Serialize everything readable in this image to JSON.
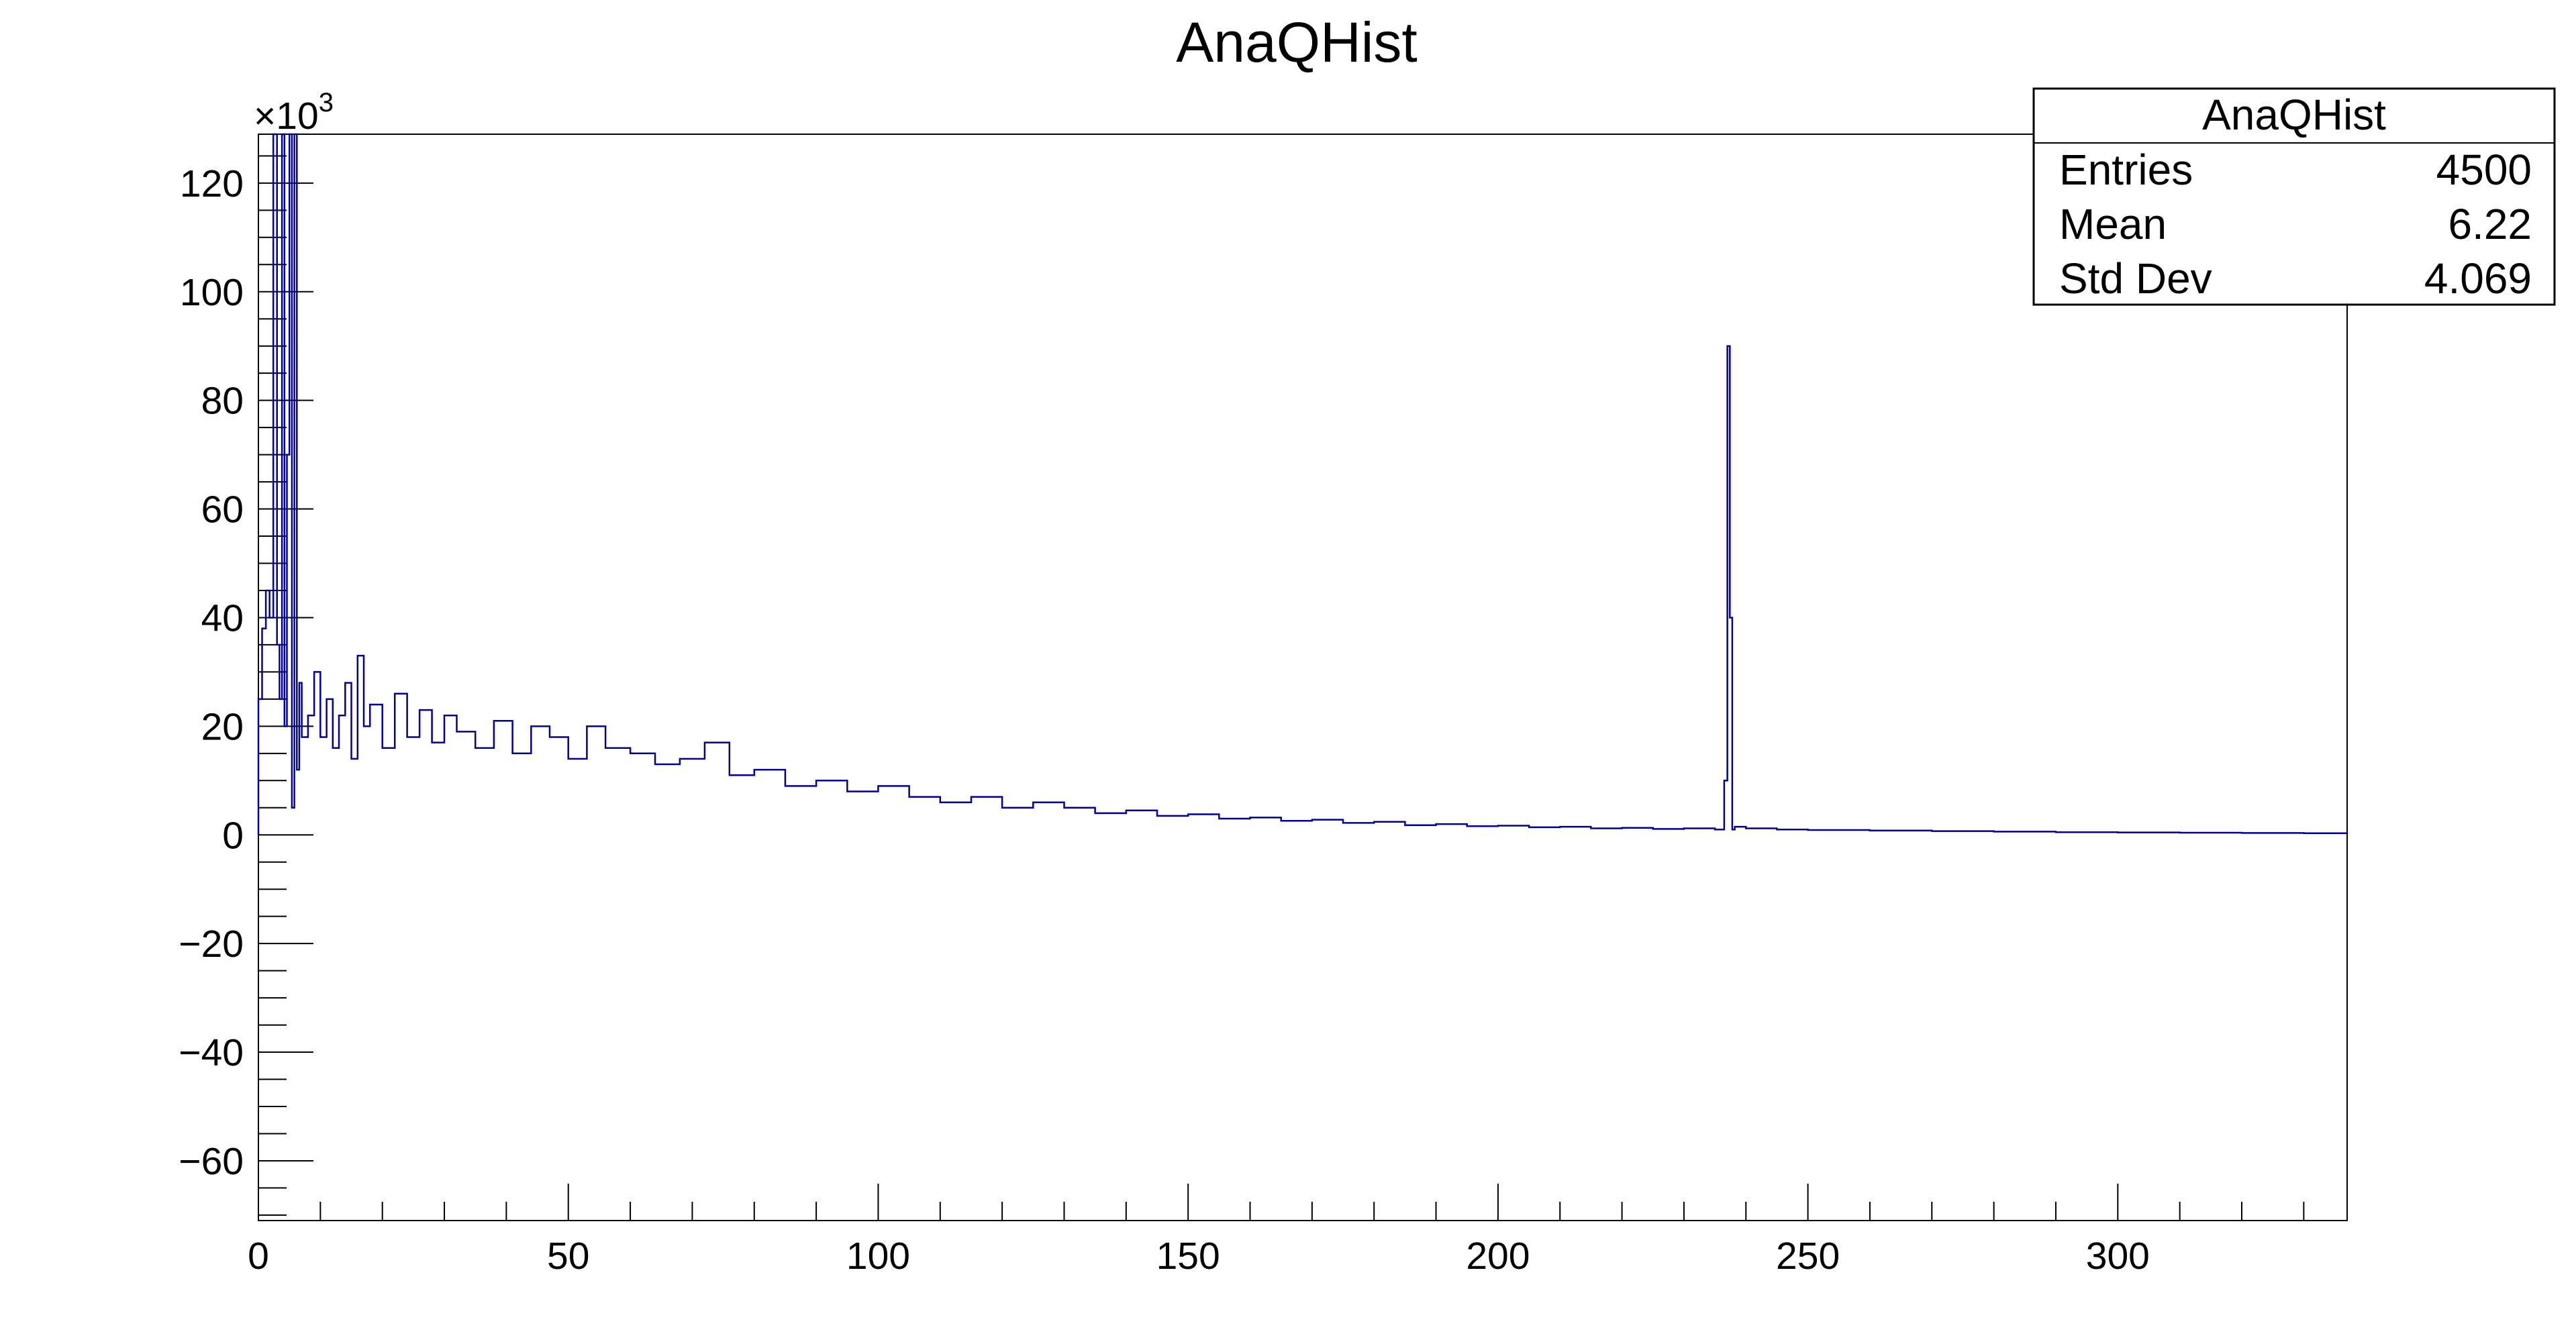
{
  "chart_data": {
    "type": "line",
    "title": "AnaQHist",
    "xlabel": "",
    "ylabel": "",
    "xlim": [
      0,
      337
    ],
    "ylim": [
      -71,
      129
    ],
    "y_exponent_label": "×10",
    "y_exponent_power": "3",
    "x_ticks": [
      0,
      50,
      100,
      150,
      200,
      250,
      300
    ],
    "y_ticks": [
      -60,
      -40,
      -20,
      0,
      20,
      40,
      60,
      80,
      100,
      120
    ],
    "x_tick_labels": [
      "0",
      "50",
      "100",
      "150",
      "200",
      "250",
      "300"
    ],
    "y_tick_labels": [
      "−60",
      "−40",
      "−20",
      "0",
      "20",
      "40",
      "60",
      "80",
      "100",
      "120"
    ],
    "series": [
      {
        "color": "#000099",
        "x": [
          0,
          0.6,
          1.2,
          1.8,
          2.4,
          3.0,
          3.4,
          3.8,
          4.2,
          4.6,
          5.0,
          5.4,
          5.8,
          6.2,
          6.6,
          7.0,
          8,
          9,
          10,
          11,
          12,
          13,
          14,
          15,
          16,
          17,
          18,
          20,
          22,
          24,
          26,
          28,
          30,
          32,
          35,
          38,
          41,
          44,
          47,
          50,
          53,
          56,
          60,
          64,
          68,
          72,
          76,
          80,
          85,
          90,
          95,
          100,
          105,
          110,
          115,
          120,
          125,
          130,
          135,
          140,
          145,
          150,
          155,
          160,
          165,
          170,
          175,
          180,
          185,
          190,
          195,
          200,
          205,
          210,
          215,
          220,
          225,
          230,
          235,
          236.5,
          237.0,
          237.4,
          237.8,
          238.2,
          240,
          245,
          250,
          260,
          270,
          280,
          290,
          300,
          310,
          320,
          330,
          337
        ],
        "values": [
          25,
          38,
          45,
          40,
          129,
          35,
          25,
          129,
          20,
          70,
          129,
          5,
          129,
          12,
          28,
          18,
          22,
          30,
          18,
          25,
          16,
          22,
          28,
          14,
          33,
          20,
          24,
          16,
          26,
          18,
          23,
          17,
          22,
          19,
          16,
          21,
          15,
          20,
          18,
          14,
          20,
          16,
          15,
          13,
          14,
          17,
          11,
          12,
          9,
          10,
          8,
          9,
          7,
          6,
          7,
          5,
          6,
          5,
          4,
          4.5,
          3.5,
          3.8,
          3,
          3.2,
          2.6,
          2.8,
          2.2,
          2.4,
          1.8,
          2,
          1.6,
          1.7,
          1.4,
          1.5,
          1.2,
          1.3,
          1.1,
          1.2,
          1,
          10,
          90,
          40,
          1,
          1.5,
          1.2,
          1,
          0.9,
          0.8,
          0.7,
          0.6,
          0.5,
          0.45,
          0.4,
          0.35,
          0.3,
          0.2
        ]
      }
    ],
    "stats_box": {
      "title": "AnaQHist",
      "rows": [
        {
          "label": "Entries",
          "value": "4500"
        },
        {
          "label": "Mean",
          "value": "6.22"
        },
        {
          "label": "Std Dev",
          "value": "4.069"
        }
      ]
    }
  }
}
